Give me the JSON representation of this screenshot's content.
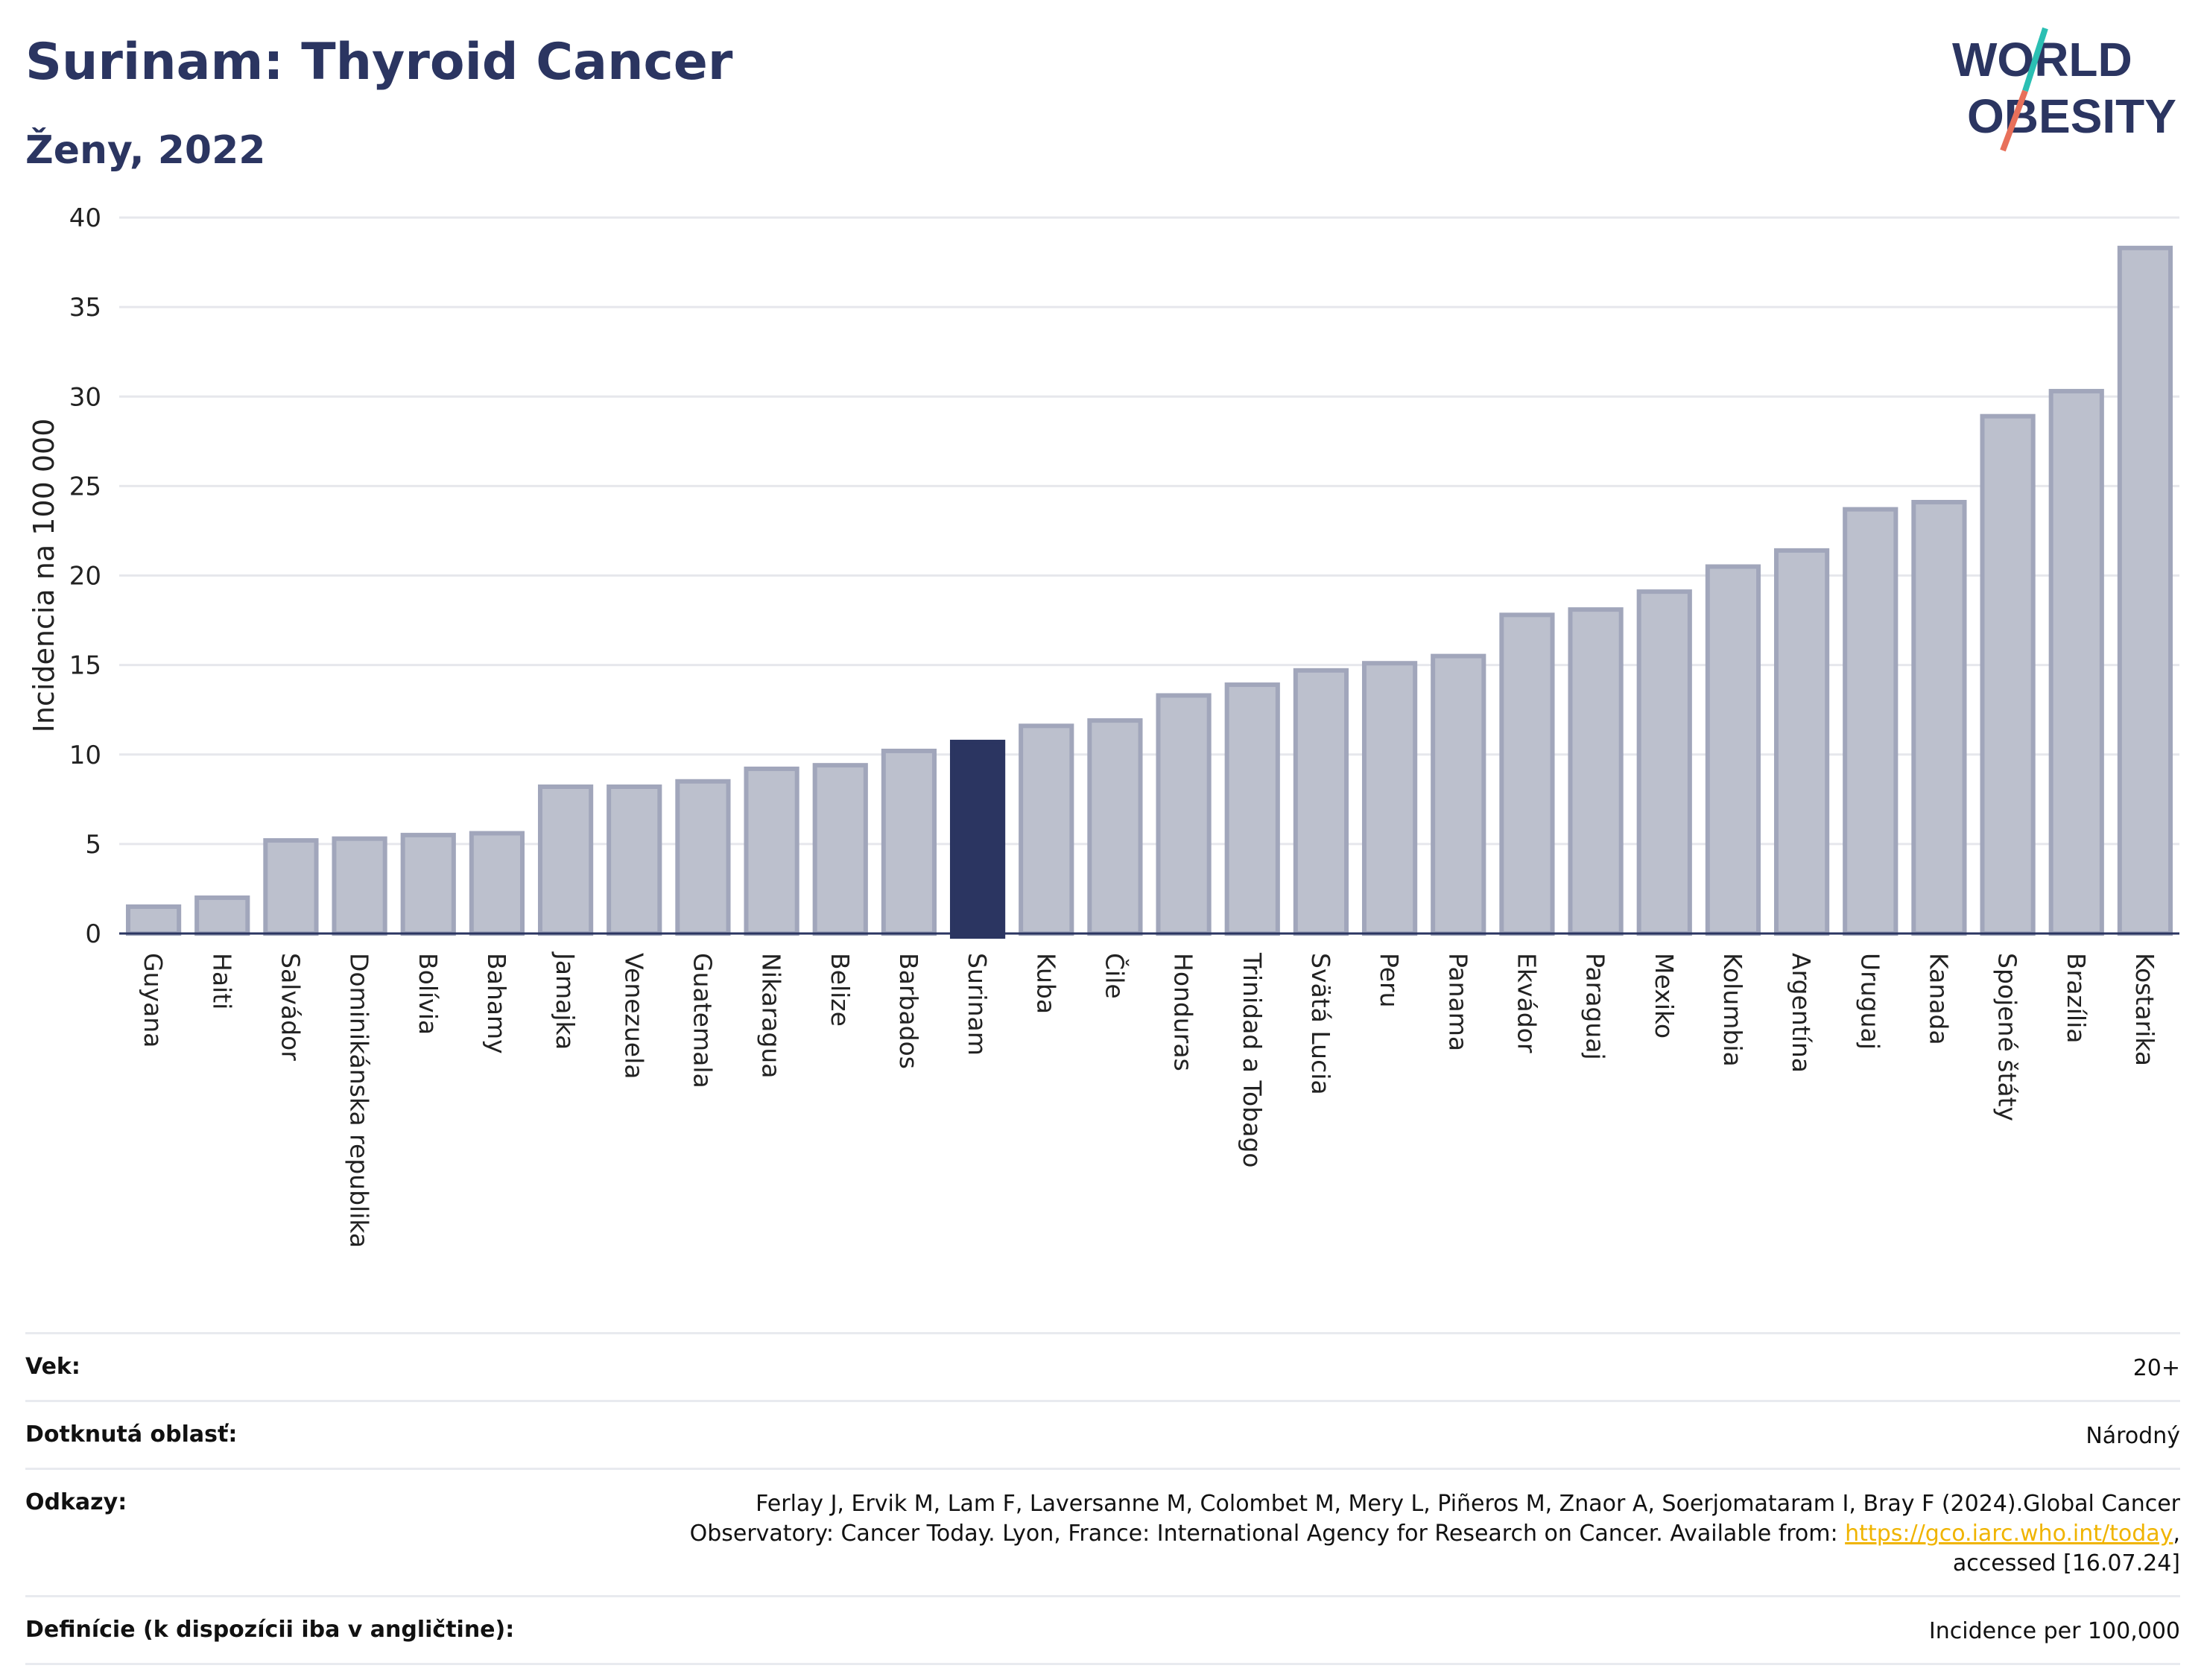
{
  "header": {
    "title": "Surinam: Thyroid Cancer",
    "subtitle": "Ženy, 2022"
  },
  "logo": {
    "line1": "WORLD",
    "line2": "OBESITY",
    "colors": {
      "text": "#2b3561",
      "slash_top": "#2bbfb3",
      "slash_bottom": "#e8705a"
    }
  },
  "chart_data": {
    "type": "bar",
    "title": "Surinam: Thyroid Cancer",
    "subtitle": "Ženy, 2022",
    "ylabel": "Incidencia na 100 000",
    "xlabel": "",
    "ylim": [
      0,
      40
    ],
    "yticks": [
      0,
      5,
      10,
      15,
      20,
      25,
      30,
      35,
      40
    ],
    "grid": true,
    "highlight": "Surinam",
    "colors": {
      "bar": "#bcc0cd",
      "bar_edge": "#a1a6bb",
      "highlight": "#2b3561",
      "grid": "#e6e7ec"
    },
    "categories": [
      "Guyana",
      "Haiti",
      "Salvádor",
      "Dominikánska republika",
      "Bolívia",
      "Bahamy",
      "Jamajka",
      "Venezuela",
      "Guatemala",
      "Nikaragua",
      "Belize",
      "Barbados",
      "Surinam",
      "Kuba",
      "Čile",
      "Honduras",
      "Trinidad a Tobago",
      "Svätá Lucia",
      "Peru",
      "Panama",
      "Ekvádor",
      "Paraguaj",
      "Mexiko",
      "Kolumbia",
      "Argentína",
      "Uruguaj",
      "Kanada",
      "Spojené štáty",
      "Brazília",
      "Kostarika"
    ],
    "values": [
      1.5,
      2.0,
      5.2,
      5.3,
      5.5,
      5.6,
      8.2,
      8.2,
      8.5,
      9.2,
      9.4,
      10.2,
      10.7,
      11.6,
      11.9,
      13.3,
      13.9,
      14.7,
      15.1,
      15.5,
      17.8,
      18.1,
      19.1,
      20.5,
      21.4,
      23.7,
      24.1,
      28.9,
      30.3,
      38.3
    ]
  },
  "meta": [
    {
      "key": "Vek:",
      "value": "20+"
    },
    {
      "key": "Dotknutá oblasť:",
      "value": "Národný"
    },
    {
      "key": "Odkazy:",
      "value": "Ferlay J, Ervik M, Lam F, Laversanne M, Colombet M, Mery L, Piñeros M, Znaor A, Soerjomataram I, Bray F (2024).Global Cancer Observatory: Cancer Today. Lyon, France: International Agency for Research on Cancer. Available from:",
      "link": "https://gco.iarc.who.int/today",
      "suffix": ", accessed [16.07.24]"
    },
    {
      "key": "Definície (k dispozícii iba v angličtine):",
      "value": "Incidence per 100,000"
    }
  ]
}
